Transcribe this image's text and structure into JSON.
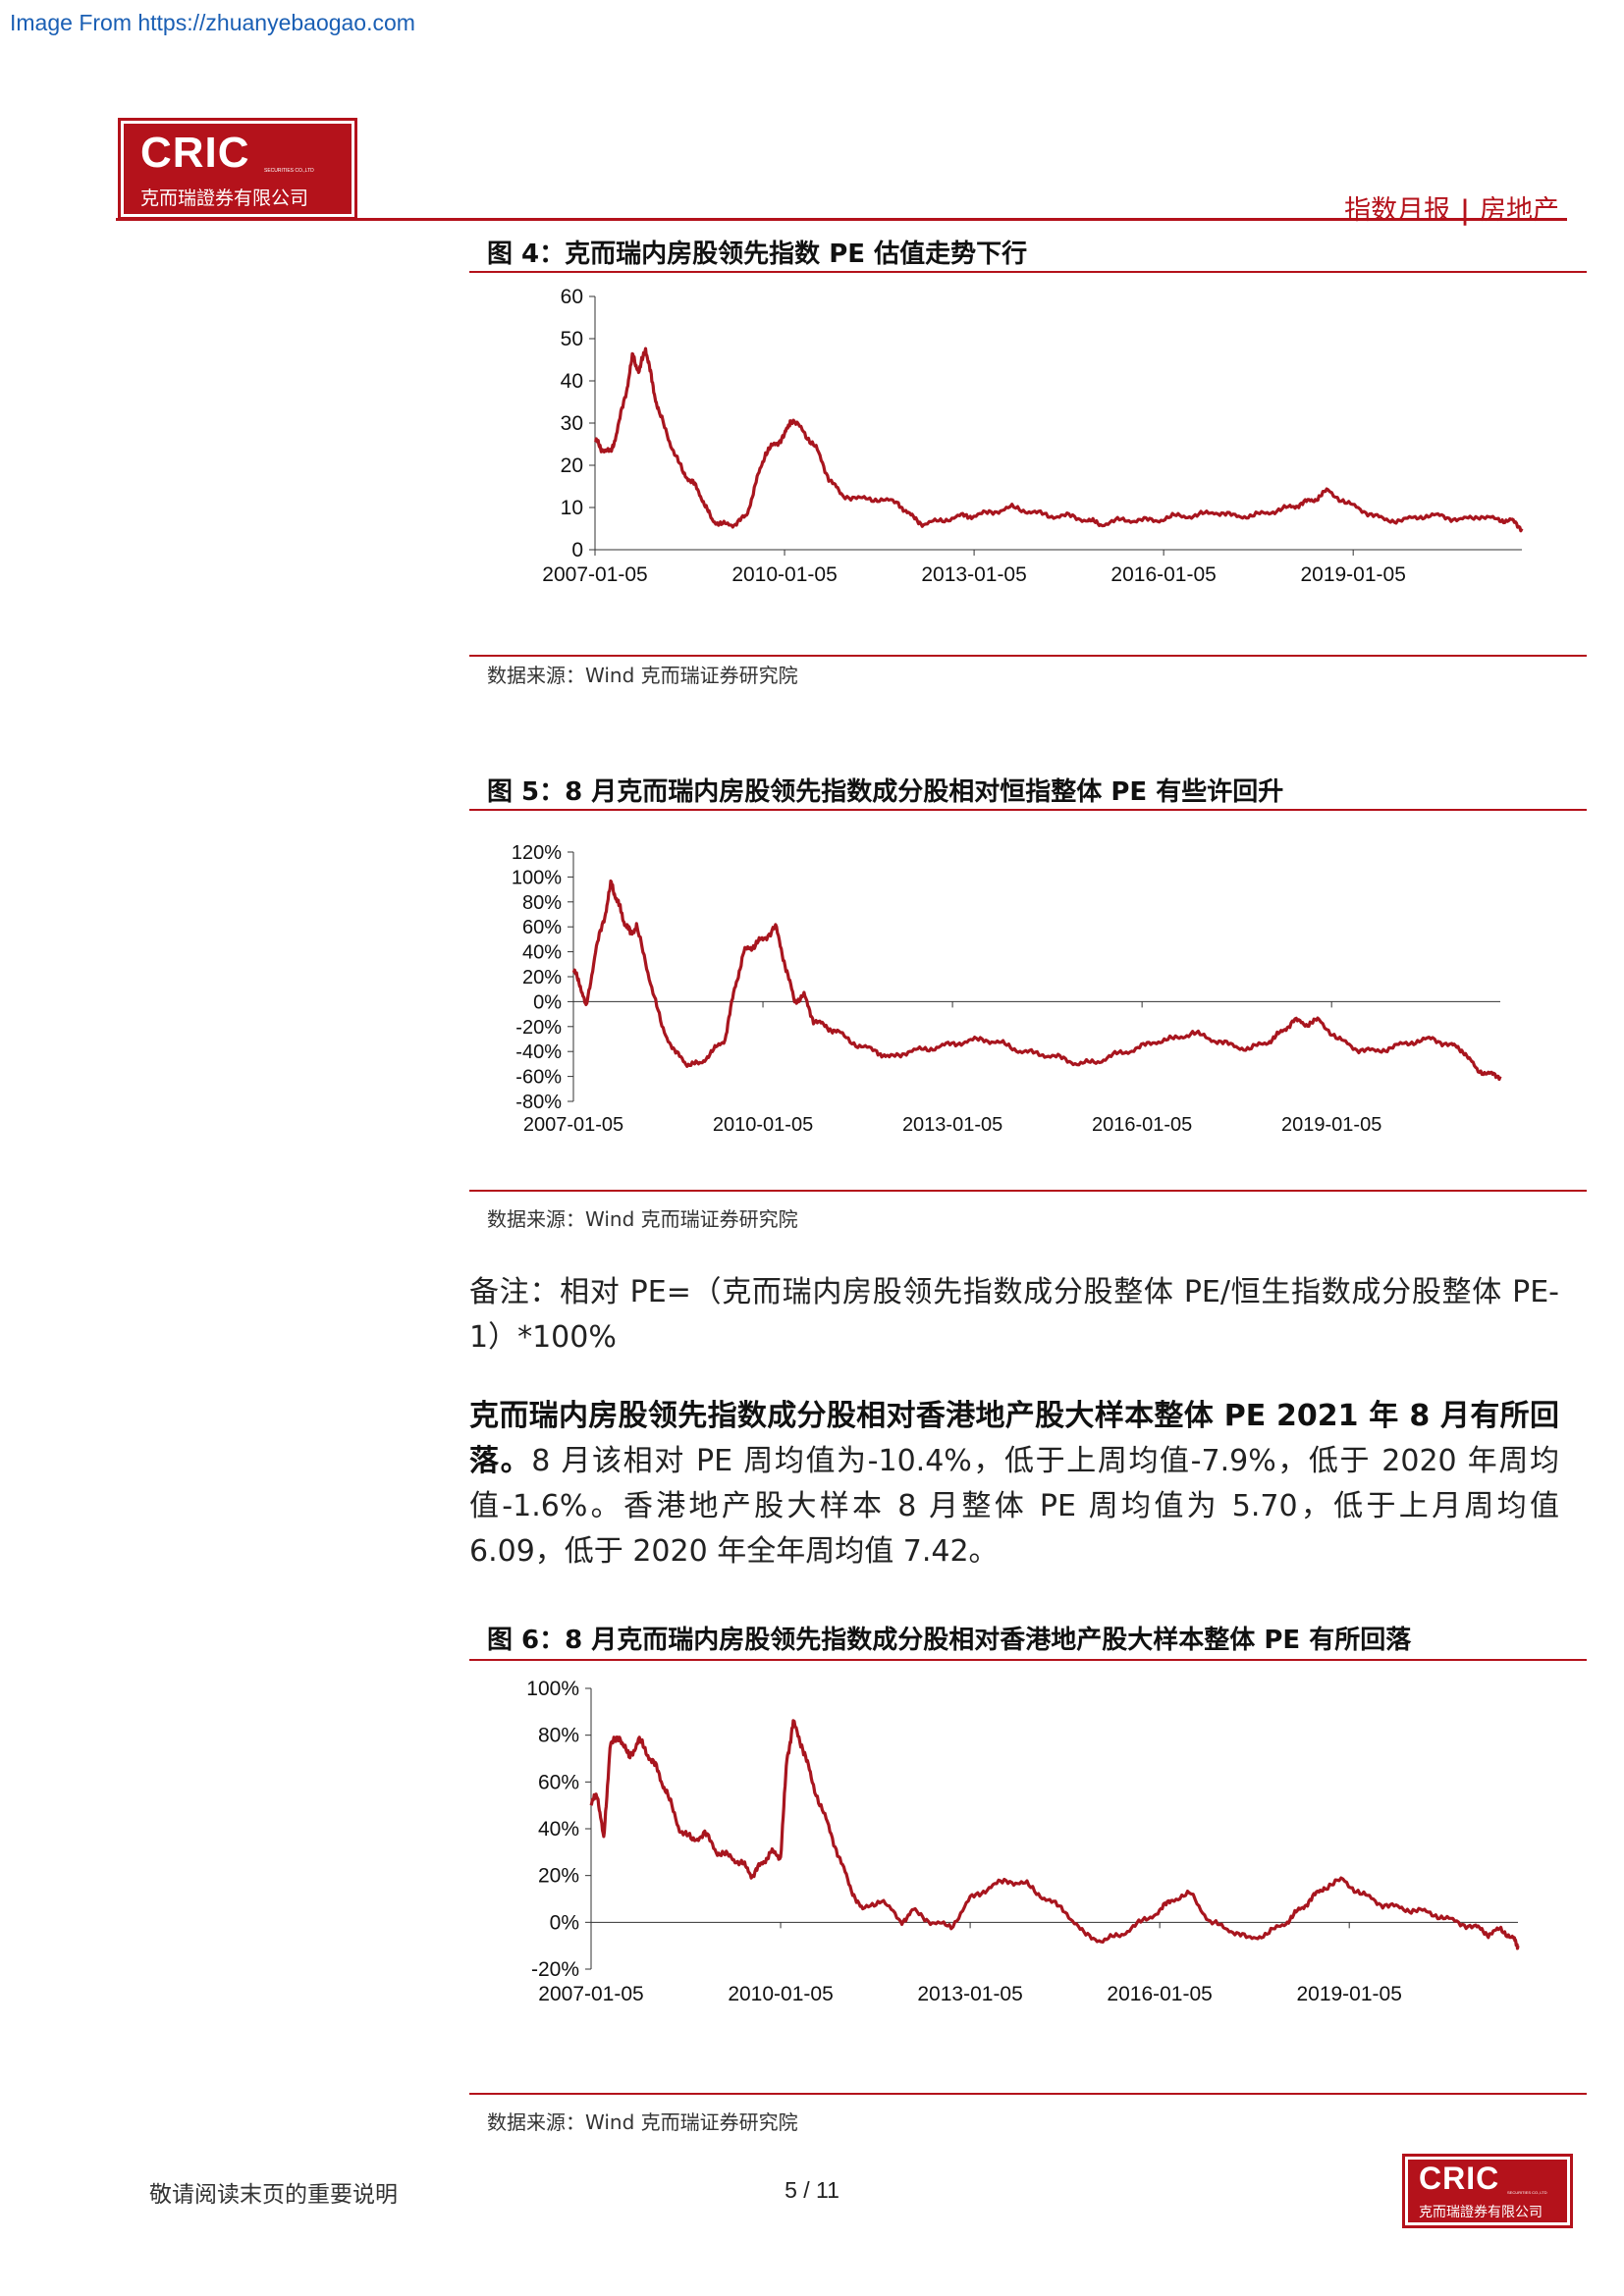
{
  "watermark": "Image From https://zhuanyebaogao.com",
  "header": {
    "logo_en": "CRIC",
    "logo_tiny": "SECURITIES CO.,LTD",
    "logo_cn": "克而瑞證券有限公司",
    "report_type": "指数月报",
    "separator": "|",
    "sector": "房地产"
  },
  "colors": {
    "brand_red": "#b4121b",
    "line_red": "#a8151e"
  },
  "figures": [
    {
      "title": "图 4：克而瑞内房股领先指数 PE 估值走势下行",
      "source": "数据来源：Wind 克而瑞证券研究院"
    },
    {
      "title": "图 5：8 月克而瑞内房股领先指数成分股相对恒指整体 PE 有些许回升",
      "source": "数据来源：Wind 克而瑞证券研究院"
    },
    {
      "title": "图 6：8 月克而瑞内房股领先指数成分股相对香港地产股大样本整体 PE 有所回落",
      "source": "数据来源：Wind 克而瑞证券研究院"
    }
  ],
  "note": "备注：相对 PE=（克而瑞内房股领先指数成分股整体 PE/恒生指数成分股整体 PE-1）*100%",
  "paragraph": {
    "bold": "克而瑞内房股领先指数成分股相对香港地产股大样本整体 PE 2021 年 8 月有所回落。",
    "text": "8 月该相对 PE 周均值为-10.4%，低于上周均值-7.9%，低于 2020 年周均值-1.6%。香港地产股大样本 8 月整体 PE 周均值为 5.70，低于上月周均值 6.09，低于 2020 年全年周均值 7.42。"
  },
  "footer": {
    "disclaimer": "敬请阅读末页的重要说明",
    "page": "5 / 11"
  },
  "chart_data": [
    {
      "type": "line",
      "title": "图 4：克而瑞内房股领先指数 PE 估值走势下行",
      "x_tick_labels": [
        "2007-01-05",
        "2010-01-05",
        "2013-01-05",
        "2016-01-05",
        "2019-01-05"
      ],
      "y_tick_labels": [
        "0",
        "10",
        "20",
        "30",
        "40",
        "50",
        "60"
      ],
      "ylim": [
        0,
        60
      ],
      "xlim": [
        2007.0,
        2021.67
      ],
      "grid": false,
      "series": [
        {
          "x": [
            2007.0,
            2007.1,
            2007.25,
            2007.35,
            2007.5,
            2007.6,
            2007.7,
            2007.8,
            2007.9,
            2008.0,
            2008.2,
            2008.4,
            2008.55,
            2008.7,
            2008.85,
            2009.0,
            2009.2,
            2009.4,
            2009.55,
            2009.7,
            2009.85,
            2010.0,
            2010.1,
            2010.3,
            2010.5,
            2010.7,
            2010.9,
            2011.2,
            2011.5,
            2011.8,
            2012.0,
            2012.2,
            2012.5,
            2012.8,
            2013.0,
            2013.3,
            2013.6,
            2013.9,
            2014.2,
            2014.5,
            2014.8,
            2015.0,
            2015.3,
            2015.6,
            2015.9,
            2016.2,
            2016.5,
            2016.8,
            2017.1,
            2017.4,
            2017.7,
            2018.0,
            2018.2,
            2018.4,
            2018.6,
            2018.9,
            2019.2,
            2019.5,
            2019.8,
            2020.1,
            2020.4,
            2020.7,
            2021.0,
            2021.3,
            2021.5,
            2021.67
          ],
          "y": [
            26,
            24,
            23,
            28,
            38,
            46,
            42,
            48,
            40,
            33,
            25,
            18,
            16,
            12,
            7,
            6,
            6,
            8,
            16,
            23,
            25,
            27,
            31,
            28,
            24,
            17,
            13,
            12,
            12,
            11,
            8,
            6,
            7,
            8,
            8,
            9,
            10,
            9,
            8,
            8,
            7,
            6,
            7,
            7,
            7,
            8,
            8,
            9,
            8,
            8,
            9,
            10,
            11,
            12,
            14,
            11,
            9,
            7,
            7,
            8,
            8,
            7,
            8,
            7,
            7,
            5
          ]
        }
      ]
    },
    {
      "type": "line",
      "title": "图 5：8 月克而瑞内房股领先指数成分股相对恒指整体 PE 有些许回升",
      "x_tick_labels": [
        "2007-01-05",
        "2010-01-05",
        "2013-01-05",
        "2016-01-05",
        "2019-01-05"
      ],
      "y_tick_labels": [
        "-80%",
        "-60%",
        "-40%",
        "-20%",
        "0%",
        "20%",
        "40%",
        "60%",
        "80%",
        "100%",
        "120%"
      ],
      "ylim": [
        -80,
        120
      ],
      "xlim": [
        2007.0,
        2021.67
      ],
      "grid": false,
      "series": [
        {
          "x": [
            2007.0,
            2007.1,
            2007.2,
            2007.35,
            2007.5,
            2007.6,
            2007.7,
            2007.8,
            2007.9,
            2008.0,
            2008.2,
            2008.4,
            2008.6,
            2008.8,
            2009.0,
            2009.2,
            2009.4,
            2009.55,
            2009.7,
            2009.85,
            2010.0,
            2010.2,
            2010.35,
            2010.5,
            2010.65,
            2010.8,
            2011.0,
            2011.2,
            2011.5,
            2011.8,
            2012.0,
            2012.3,
            2012.6,
            2012.9,
            2013.2,
            2013.5,
            2013.8,
            2014.1,
            2014.4,
            2014.7,
            2015.0,
            2015.3,
            2015.6,
            2015.9,
            2016.2,
            2016.5,
            2016.8,
            2017.1,
            2017.4,
            2017.7,
            2018.0,
            2018.2,
            2018.4,
            2018.6,
            2018.8,
            2019.1,
            2019.4,
            2019.7,
            2020.0,
            2020.3,
            2020.6,
            2020.9,
            2021.1,
            2021.3,
            2021.5,
            2021.67
          ],
          "y": [
            25,
            15,
            -5,
            40,
            70,
            95,
            80,
            65,
            55,
            60,
            20,
            -20,
            -40,
            -50,
            -50,
            -40,
            -30,
            10,
            40,
            45,
            50,
            60,
            30,
            0,
            5,
            -15,
            -20,
            -25,
            -35,
            -40,
            -45,
            -40,
            -38,
            -35,
            -32,
            -30,
            -34,
            -40,
            -42,
            -45,
            -50,
            -48,
            -42,
            -38,
            -32,
            -30,
            -25,
            -30,
            -35,
            -38,
            -32,
            -25,
            -15,
            -18,
            -15,
            -30,
            -38,
            -40,
            -36,
            -32,
            -30,
            -35,
            -40,
            -55,
            -58,
            -60
          ]
        }
      ]
    },
    {
      "type": "line",
      "title": "图 6：8 月克而瑞内房股领先指数成分股相对香港地产股大样本整体 PE 有所回落",
      "x_tick_labels": [
        "2007-01-05",
        "2010-01-05",
        "2013-01-05",
        "2016-01-05",
        "2019-01-05"
      ],
      "y_tick_labels": [
        "-20%",
        "0%",
        "20%",
        "40%",
        "60%",
        "80%",
        "100%"
      ],
      "ylim": [
        -20,
        100
      ],
      "xlim": [
        2007.0,
        2021.67
      ],
      "grid": false,
      "series": [
        {
          "x": [
            2007.0,
            2007.1,
            2007.2,
            2007.3,
            2007.45,
            2007.6,
            2007.75,
            2007.9,
            2008.05,
            2008.2,
            2008.4,
            2008.6,
            2008.8,
            2009.0,
            2009.2,
            2009.4,
            2009.55,
            2009.7,
            2009.85,
            2010.0,
            2010.1,
            2010.2,
            2010.35,
            2010.5,
            2010.7,
            2010.9,
            2011.1,
            2011.3,
            2011.6,
            2011.9,
            2012.1,
            2012.4,
            2012.7,
            2013.0,
            2013.3,
            2013.6,
            2013.9,
            2014.2,
            2014.5,
            2014.8,
            2015.1,
            2015.4,
            2015.7,
            2016.0,
            2016.2,
            2016.5,
            2016.8,
            2017.1,
            2017.4,
            2017.7,
            2018.0,
            2018.2,
            2018.4,
            2018.6,
            2018.9,
            2019.2,
            2019.5,
            2019.8,
            2020.1,
            2020.4,
            2020.7,
            2021.0,
            2021.2,
            2021.4,
            2021.6,
            2021.67
          ],
          "y": [
            50,
            55,
            35,
            75,
            80,
            70,
            78,
            72,
            65,
            55,
            40,
            35,
            38,
            30,
            28,
            25,
            20,
            25,
            30,
            28,
            70,
            85,
            75,
            60,
            45,
            30,
            15,
            5,
            10,
            0,
            5,
            0,
            -2,
            10,
            15,
            18,
            16,
            10,
            5,
            -5,
            -8,
            -5,
            0,
            5,
            10,
            12,
            0,
            -3,
            -7,
            -5,
            0,
            5,
            10,
            15,
            18,
            12,
            8,
            6,
            5,
            3,
            0,
            -2,
            -5,
            -3,
            -7,
            -10
          ]
        }
      ]
    }
  ]
}
